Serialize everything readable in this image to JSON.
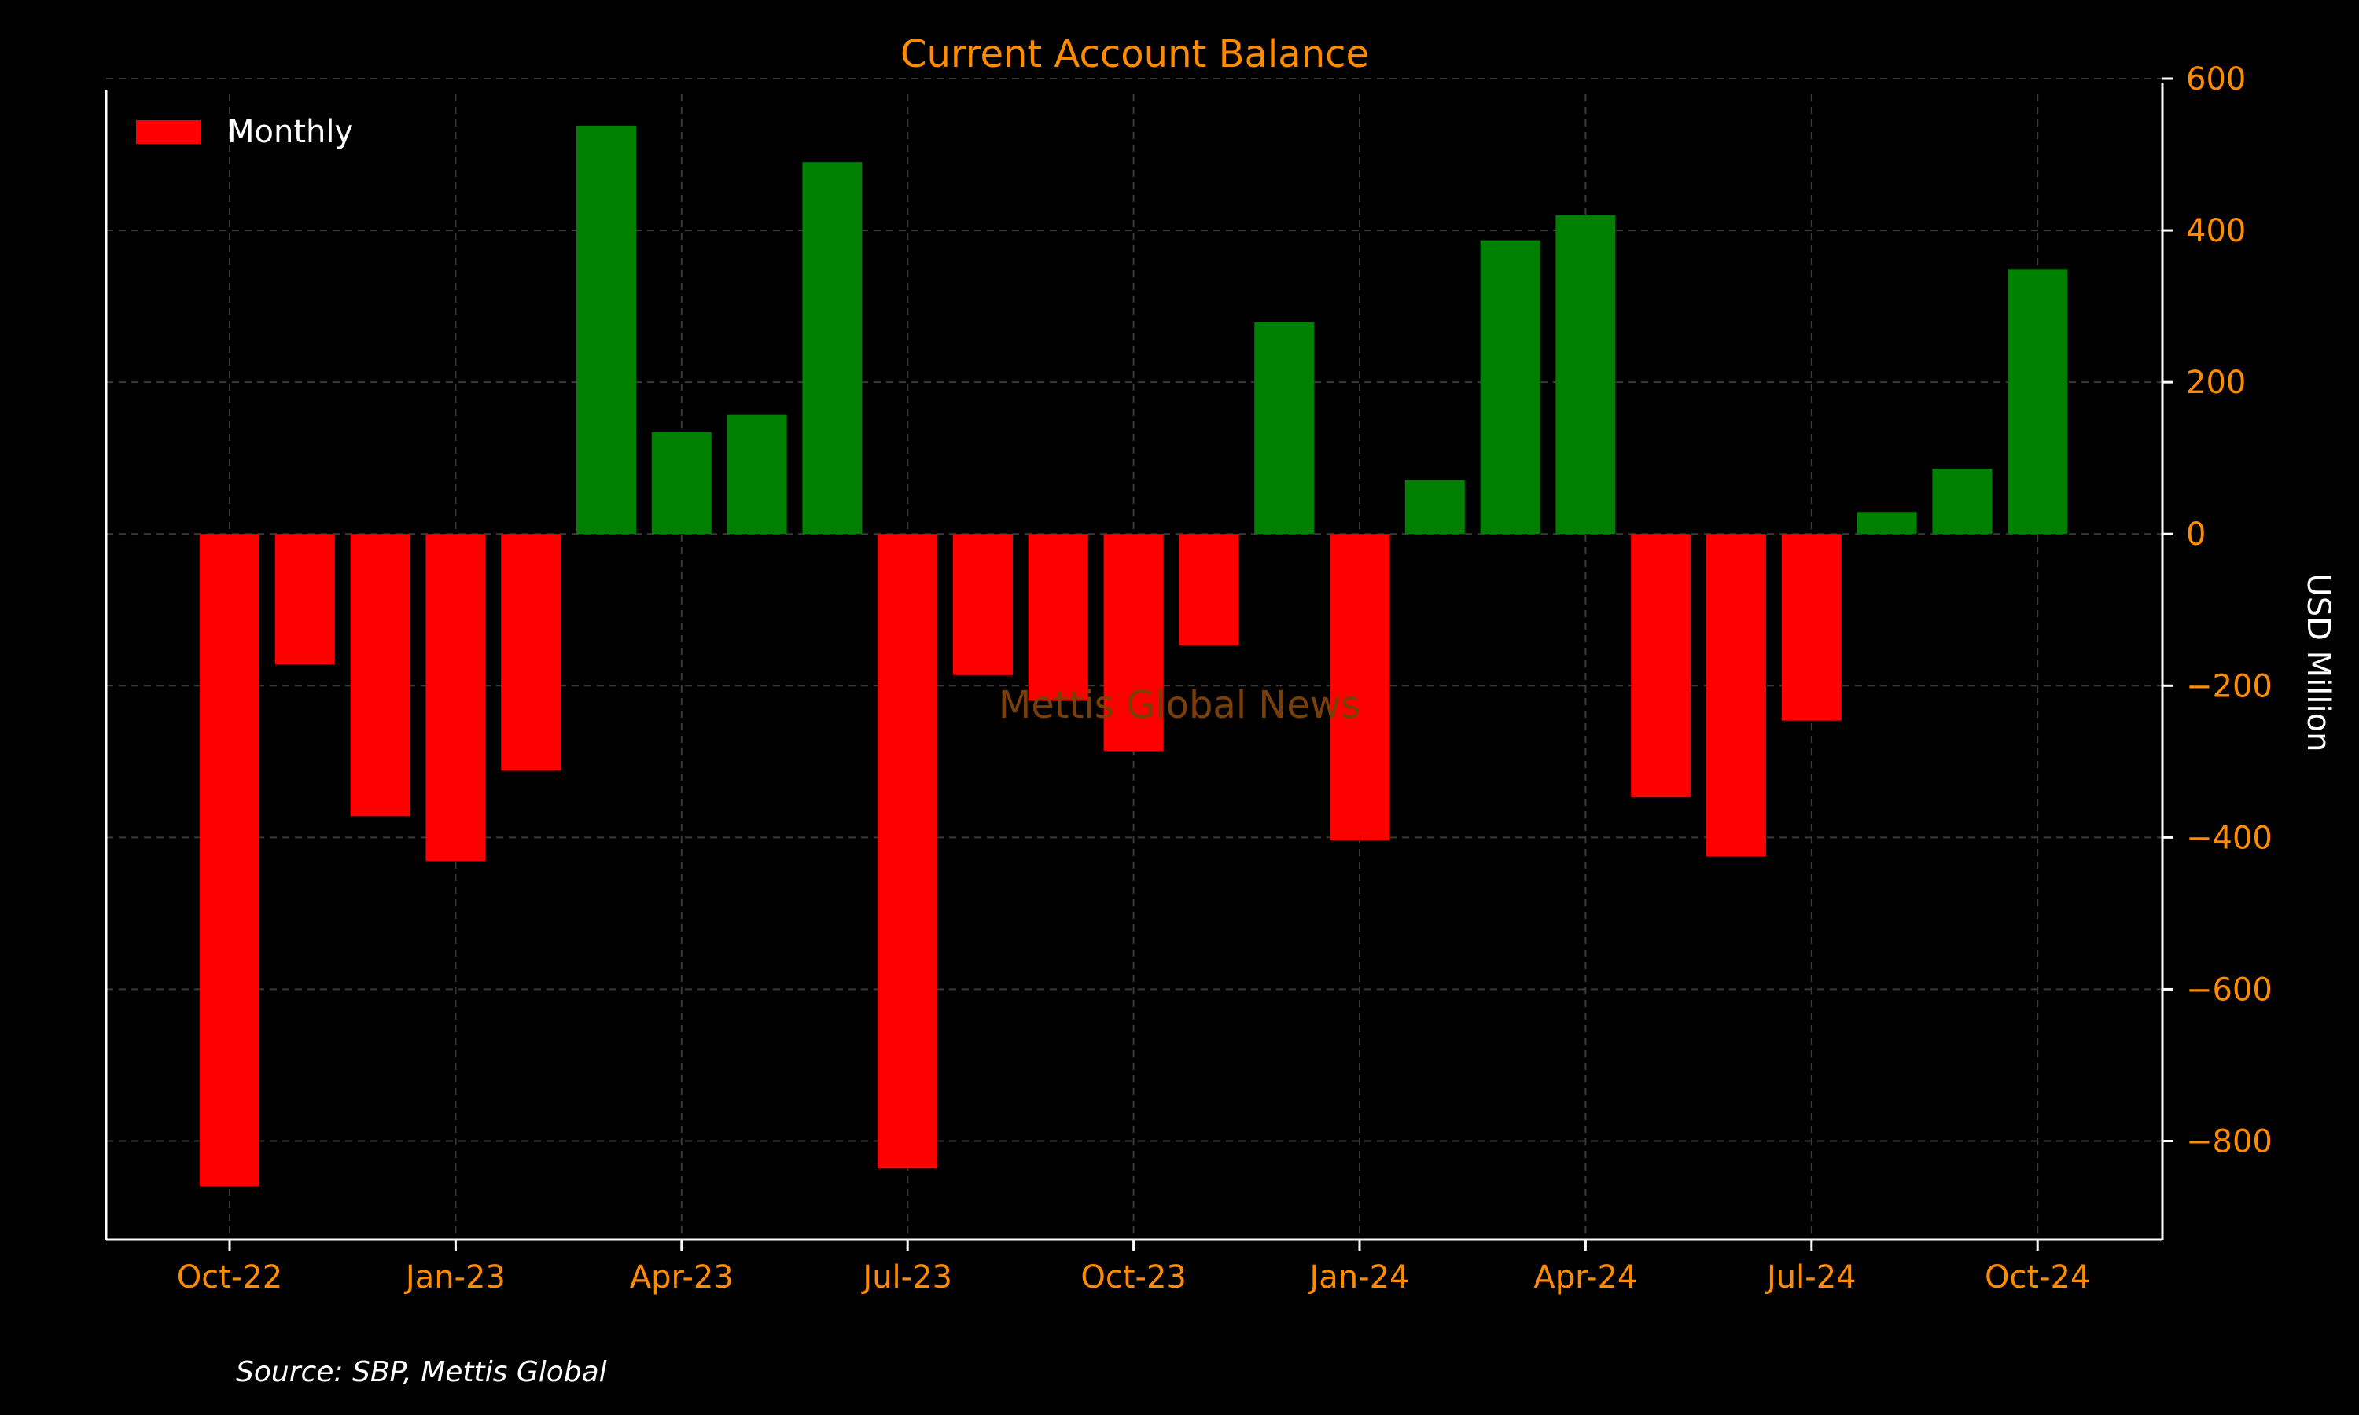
{
  "chart_data": {
    "type": "bar",
    "title": "Current Account Balance",
    "ylabel": "USD Million",
    "xlabel": "",
    "y_axis_position": "right",
    "ylim": [
      -930,
      600
    ],
    "y_ticks": [
      600,
      400,
      200,
      0,
      -200,
      -400,
      -600,
      -800
    ],
    "y_tick_labels": [
      "600",
      "400",
      "200",
      "0",
      "−200",
      "−400",
      "−600",
      "−800"
    ],
    "grid": true,
    "legend": {
      "placement": "top-left",
      "entries": [
        "Monthly"
      ]
    },
    "categories": [
      "Oct-22",
      "Nov-22",
      "Dec-22",
      "Jan-23",
      "Feb-23",
      "Mar-23",
      "Apr-23",
      "May-23",
      "Jun-23",
      "Jul-23",
      "Aug-23",
      "Sep-23",
      "Oct-23",
      "Nov-23",
      "Dec-23",
      "Jan-24",
      "Feb-24",
      "Mar-24",
      "Apr-24",
      "May-24",
      "Jun-24",
      "Jul-24",
      "Aug-24",
      "Sep-24",
      "Oct-24"
    ],
    "x_tick_labels": [
      "Oct-22",
      "Jan-23",
      "Apr-23",
      "Jul-23",
      "Oct-23",
      "Jan-24",
      "Apr-24",
      "Jul-24",
      "Oct-24"
    ],
    "series": [
      {
        "name": "Monthly",
        "values": [
          -860,
          -172,
          -372,
          -431,
          -312,
          538,
          134,
          157,
          490,
          -836,
          -186,
          -220,
          -286,
          -147,
          279,
          -404,
          71,
          387,
          420,
          -347,
          -425,
          -246,
          29,
          86,
          349
        ]
      }
    ],
    "colors": {
      "positive": "#008000",
      "negative": "#ff0000",
      "accent": "#ff8c00"
    }
  },
  "watermark": "Mettis Global News",
  "source": "Source: SBP, Mettis Global"
}
